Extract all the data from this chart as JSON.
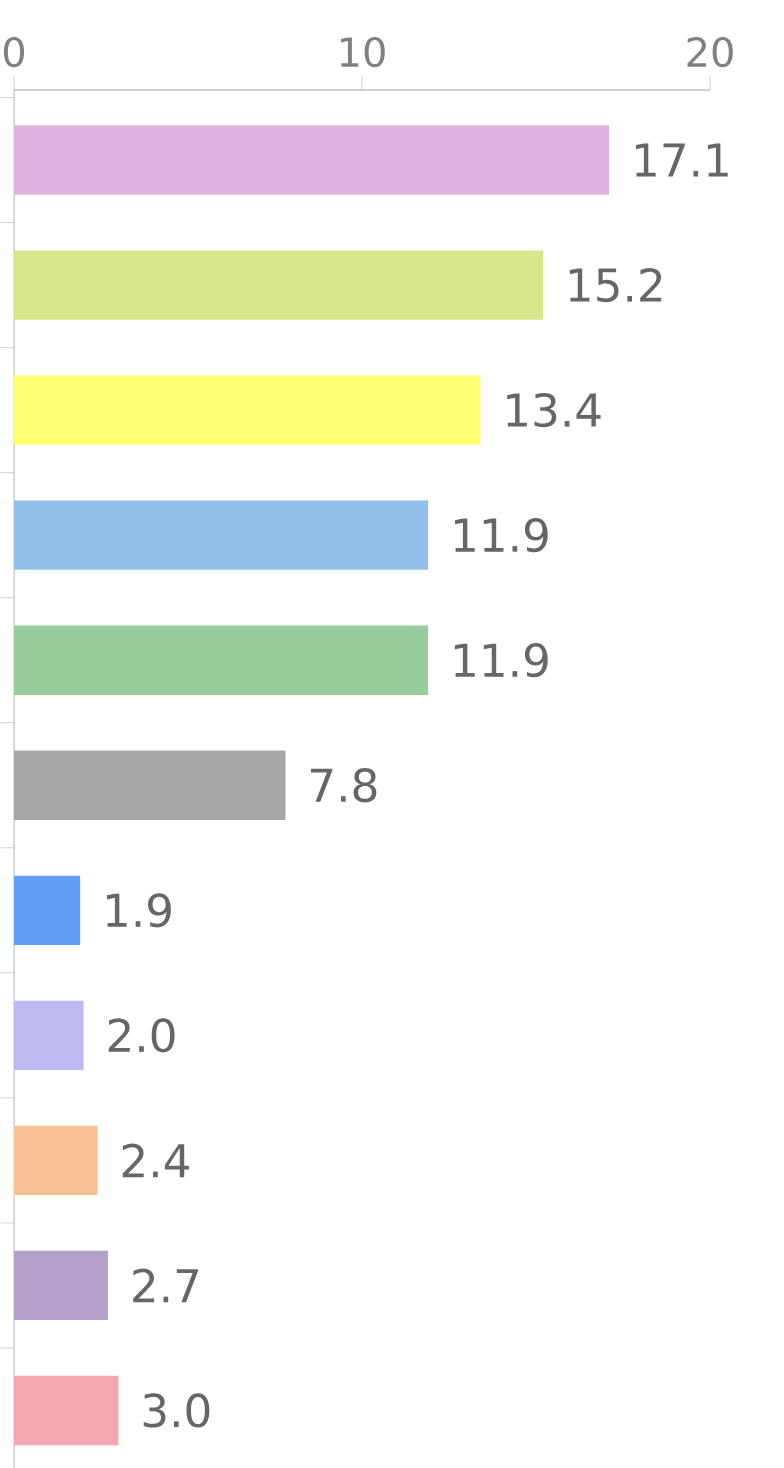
{
  "chart_data": {
    "type": "bar",
    "orientation": "horizontal",
    "categories": [
      null,
      null,
      null,
      null,
      null,
      null,
      null,
      null,
      null,
      null,
      null
    ],
    "values": [
      17.1,
      15.2,
      13.4,
      11.9,
      11.9,
      7.8,
      1.9,
      2.0,
      2.4,
      2.7,
      3.0
    ],
    "value_labels": [
      "17.1",
      "15.2",
      "13.4",
      "11.9",
      "11.9",
      "7.8",
      "1.9",
      "2.0",
      "2.4",
      "2.7",
      "3.0"
    ],
    "colors": [
      "#e0b2e0",
      "#d8e68c",
      "#ffff73",
      "#94c0ec",
      "#9acd9e",
      "#a6a6a6",
      "#609ef8",
      "#bdb9f2",
      "#f7c194",
      "#b3a0c8",
      "#f4a7b0"
    ],
    "xlim": [
      0,
      20
    ],
    "xticks": [
      0,
      10,
      20
    ]
  }
}
